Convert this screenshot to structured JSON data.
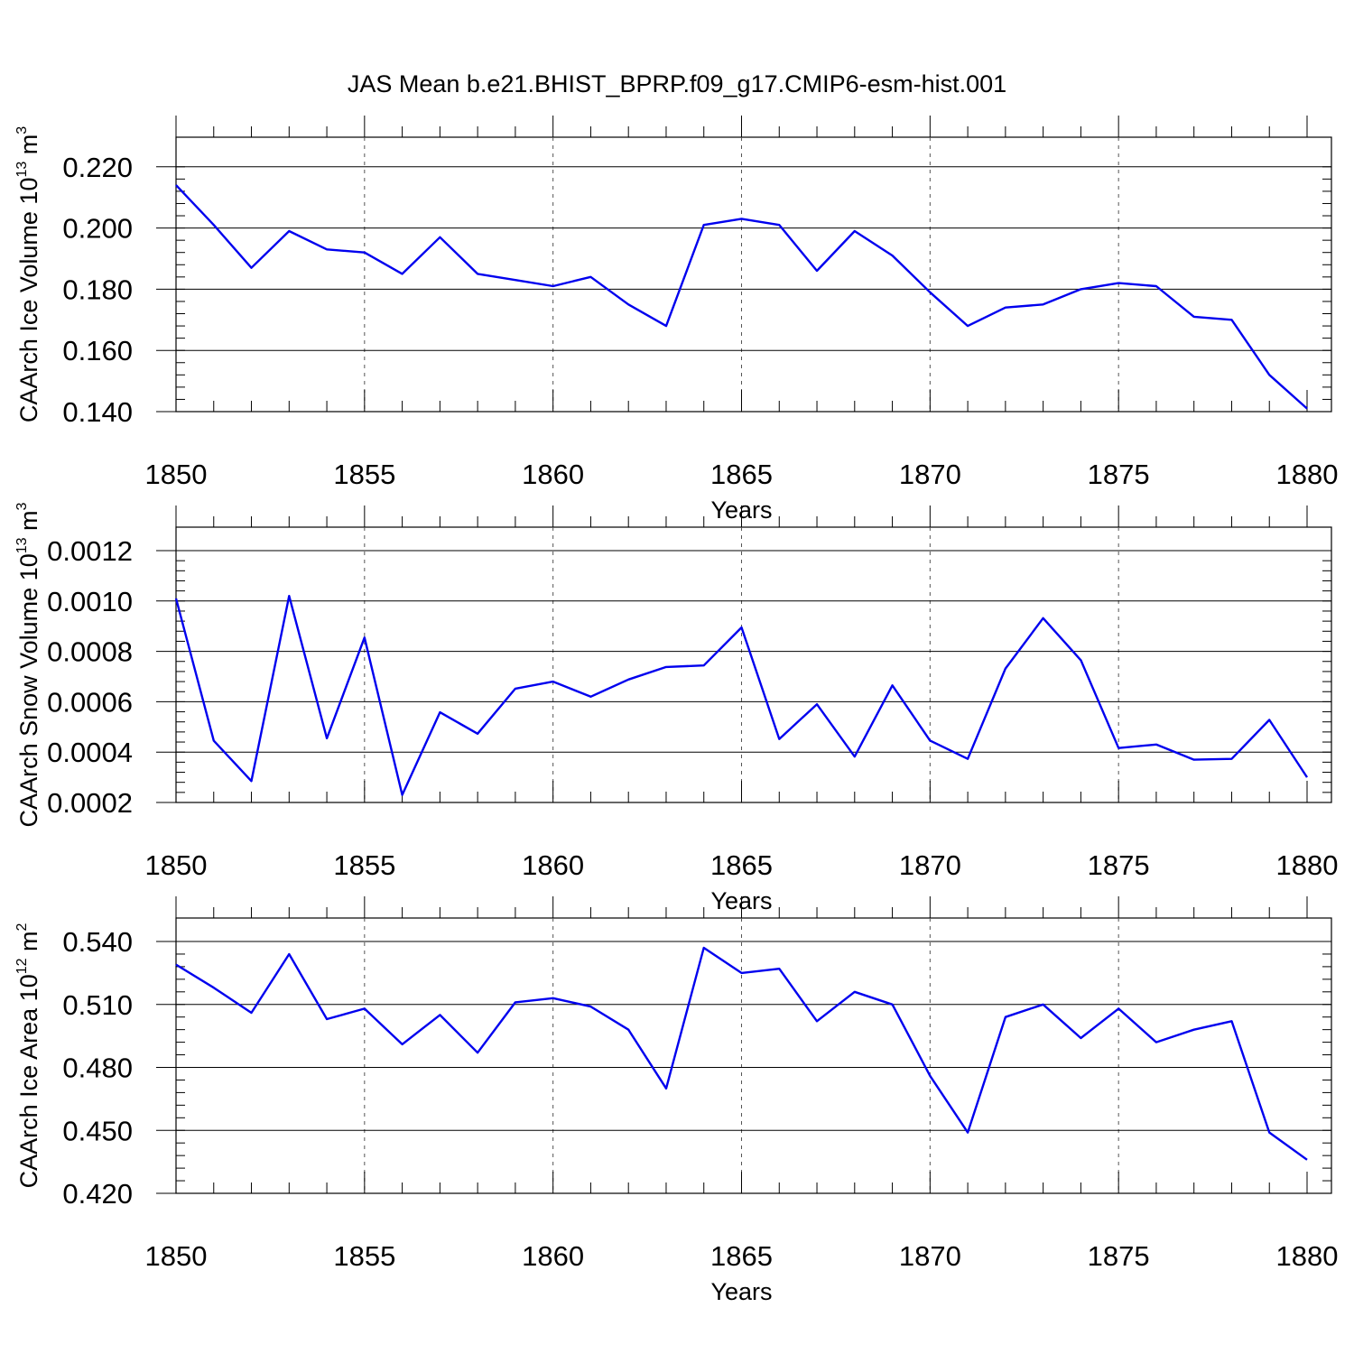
{
  "title": "JAS Mean b.e21.BHIST_BPRP.f09_g17.CMIP6-esm-hist.001",
  "chart_data": [
    {
      "type": "line",
      "xlabel": "Years",
      "ylabel": "CAArch Ice Volume 10",
      "ylabel_exp": "13",
      "ylabel_unit": " m",
      "ylabel_unit_exp": "3",
      "xlim": [
        1850,
        1880
      ],
      "ylim": [
        0.14,
        0.222
      ],
      "yticks": [
        0.14,
        0.16,
        0.18,
        0.2,
        0.22
      ],
      "ytick_labels": [
        "0.140",
        "0.160",
        "0.180",
        "0.200",
        "0.220"
      ],
      "color": "#0000ee",
      "x": [
        1850,
        1851,
        1852,
        1853,
        1854,
        1855,
        1856,
        1857,
        1858,
        1859,
        1860,
        1861,
        1862,
        1863,
        1864,
        1865,
        1866,
        1867,
        1868,
        1869,
        1870,
        1871,
        1872,
        1873,
        1874,
        1875,
        1876,
        1877,
        1878,
        1879,
        1880
      ],
      "y": [
        0.214,
        0.201,
        0.187,
        0.199,
        0.193,
        0.192,
        0.185,
        0.197,
        0.185,
        0.183,
        0.181,
        0.184,
        0.175,
        0.168,
        0.201,
        0.203,
        0.201,
        0.186,
        0.199,
        0.191,
        0.179,
        0.168,
        0.174,
        0.175,
        0.18,
        0.182,
        0.181,
        0.171,
        0.17,
        0.152,
        0.141
      ]
    },
    {
      "type": "line",
      "xlabel": "Years",
      "ylabel": "CAArch Snow Volume 10",
      "ylabel_exp": "13",
      "ylabel_unit": " m",
      "ylabel_unit_exp": "3",
      "xlim": [
        1850,
        1880
      ],
      "ylim": [
        0.0002,
        0.0012
      ],
      "yticks": [
        0.0002,
        0.0004,
        0.0006,
        0.0008,
        0.001,
        0.0012
      ],
      "ytick_labels": [
        "0.0002",
        "0.0004",
        "0.0006",
        "0.0008",
        "0.0010",
        "0.0012"
      ],
      "color": "#0000ee",
      "x": [
        1850,
        1851,
        1852,
        1853,
        1854,
        1855,
        1856,
        1857,
        1858,
        1859,
        1860,
        1861,
        1862,
        1863,
        1864,
        1865,
        1866,
        1867,
        1868,
        1869,
        1870,
        1871,
        1872,
        1873,
        1874,
        1875,
        1876,
        1877,
        1878,
        1879,
        1880
      ],
      "y": [
        0.00101,
        0.000445,
        0.000285,
        0.00102,
        0.000455,
        0.000855,
        0.00023,
        0.000558,
        0.000473,
        0.000652,
        0.00068,
        0.00062,
        0.000688,
        0.000738,
        0.000744,
        0.000895,
        0.000452,
        0.00059,
        0.000382,
        0.000665,
        0.000446,
        0.000373,
        0.000732,
        0.000932,
        0.000765,
        0.000416,
        0.00043,
        0.00037,
        0.000373,
        0.000528,
        0.0003
      ]
    },
    {
      "type": "line",
      "xlabel": "Years",
      "ylabel": "CAArch Ice Area 10",
      "ylabel_exp": "12",
      "ylabel_unit": " m",
      "ylabel_unit_exp": "2",
      "xlim": [
        1850,
        1880
      ],
      "ylim": [
        0.42,
        0.54
      ],
      "yticks": [
        0.42,
        0.45,
        0.48,
        0.51,
        0.54
      ],
      "ytick_labels": [
        "0.420",
        "0.450",
        "0.480",
        "0.510",
        "0.540"
      ],
      "color": "#0000ee",
      "x": [
        1850,
        1851,
        1852,
        1853,
        1854,
        1855,
        1856,
        1857,
        1858,
        1859,
        1860,
        1861,
        1862,
        1863,
        1864,
        1865,
        1866,
        1867,
        1868,
        1869,
        1870,
        1871,
        1872,
        1873,
        1874,
        1875,
        1876,
        1877,
        1878,
        1879,
        1880
      ],
      "y": [
        0.529,
        0.518,
        0.506,
        0.534,
        0.503,
        0.508,
        0.491,
        0.505,
        0.487,
        0.511,
        0.513,
        0.509,
        0.498,
        0.47,
        0.537,
        0.525,
        0.527,
        0.502,
        0.516,
        0.51,
        0.476,
        0.449,
        0.504,
        0.51,
        0.494,
        0.508,
        0.492,
        0.498,
        0.502,
        0.449,
        0.436
      ]
    }
  ]
}
